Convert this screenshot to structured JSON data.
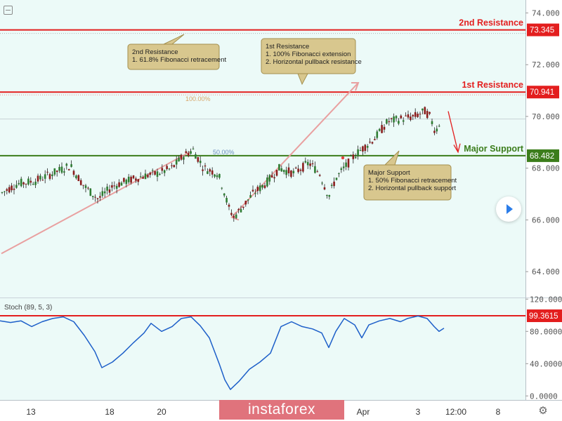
{
  "chart_data": [
    {
      "type": "candlestick",
      "symbol_note": "price panel",
      "ylim": [
        63,
        74.5
      ],
      "y_ticks": [
        "64.000",
        "66.000",
        "68.000",
        "70.000",
        "72.000",
        "74.000"
      ],
      "x_ticks": [
        "13",
        "18",
        "20",
        "Apr",
        "3",
        "12:00",
        "8"
      ],
      "levels": [
        {
          "key": "r2",
          "label": "2nd Resistance",
          "value": "73.345",
          "color": "#e31e1e"
        },
        {
          "key": "r1",
          "label": "1st Resistance",
          "value": "70.941",
          "color": "#e31e1e"
        },
        {
          "key": "s1",
          "label": "Major Support",
          "value": "68.482",
          "color": "#3b7d1b"
        }
      ],
      "fib_labels": [
        "100.00%",
        "50.00%"
      ],
      "notes": [
        {
          "key": "n_r2",
          "lines": [
            "2nd Resistance",
            "1. 61.8% Fibonacci retracement"
          ]
        },
        {
          "key": "n_r1",
          "lines": [
            "1st Resistance",
            "1. 100% Fibonacci extension",
            "2. Horizontal pullback resistance"
          ]
        },
        {
          "key": "n_s1",
          "lines": [
            "Major Support",
            "1. 50% Fibonacci retracement",
            "2. Horizontal pullback support"
          ]
        }
      ],
      "path": [
        [
          0,
          67.0
        ],
        [
          25,
          67.4
        ],
        [
          50,
          67.5
        ],
        [
          75,
          67.8
        ],
        [
          100,
          68.1
        ],
        [
          120,
          67.3
        ],
        [
          140,
          66.8
        ],
        [
          160,
          67.3
        ],
        [
          180,
          67.5
        ],
        [
          205,
          67.7
        ],
        [
          225,
          67.8
        ],
        [
          245,
          68.0
        ],
        [
          262,
          68.5
        ],
        [
          275,
          68.7
        ],
        [
          290,
          68.0
        ],
        [
          310,
          67.8
        ],
        [
          318,
          67.2
        ],
        [
          325,
          66.5
        ],
        [
          333,
          66.1
        ],
        [
          348,
          66.6
        ],
        [
          360,
          67.0
        ],
        [
          378,
          67.4
        ],
        [
          398,
          68.0
        ],
        [
          418,
          67.8
        ],
        [
          440,
          68.2
        ],
        [
          455,
          67.8
        ],
        [
          468,
          66.9
        ],
        [
          478,
          67.6
        ],
        [
          490,
          68.0
        ],
        [
          505,
          68.5
        ],
        [
          518,
          68.8
        ],
        [
          535,
          69.2
        ],
        [
          552,
          69.8
        ],
        [
          570,
          69.9
        ],
        [
          590,
          70.0
        ],
        [
          605,
          70.2
        ],
        [
          612,
          70.0
        ],
        [
          620,
          69.4
        ],
        [
          628,
          69.9
        ]
      ]
    },
    {
      "type": "line",
      "title": "Stoch (89, 5, 3)",
      "ylim": [
        -5,
        122
      ],
      "y_ticks": [
        "0.0000",
        "40.0000",
        "80.0000",
        "120.0000"
      ],
      "reference": {
        "value": "99.3615",
        "color": "#e31e1e"
      },
      "series": [
        {
          "color": "#1d5fc9",
          "points": [
            [
              0,
              93
            ],
            [
              15,
              91
            ],
            [
              30,
              93
            ],
            [
              45,
              86
            ],
            [
              60,
              92
            ],
            [
              75,
              96
            ],
            [
              90,
              98
            ],
            [
              105,
              92
            ],
            [
              120,
              75
            ],
            [
              135,
              55
            ],
            [
              145,
              35
            ],
            [
              160,
              42
            ],
            [
              175,
              53
            ],
            [
              190,
              66
            ],
            [
              205,
              78
            ],
            [
              215,
              90
            ],
            [
              230,
              80
            ],
            [
              245,
              86
            ],
            [
              258,
              96
            ],
            [
              272,
              98
            ],
            [
              285,
              87
            ],
            [
              298,
              72
            ],
            [
              312,
              40
            ],
            [
              320,
              20
            ],
            [
              328,
              8
            ],
            [
              340,
              18
            ],
            [
              355,
              33
            ],
            [
              370,
              42
            ],
            [
              385,
              53
            ],
            [
              400,
              86
            ],
            [
              415,
              92
            ],
            [
              430,
              86
            ],
            [
              445,
              83
            ],
            [
              458,
              78
            ],
            [
              468,
              60
            ],
            [
              478,
              80
            ],
            [
              490,
              96
            ],
            [
              505,
              88
            ],
            [
              515,
              72
            ],
            [
              525,
              88
            ],
            [
              540,
              93
            ],
            [
              555,
              96
            ],
            [
              570,
              92
            ],
            [
              580,
              96
            ],
            [
              595,
              99
            ],
            [
              608,
              96
            ],
            [
              618,
              86
            ],
            [
              625,
              80
            ],
            [
              632,
              84
            ]
          ]
        }
      ]
    }
  ],
  "watermark": "instaforex"
}
